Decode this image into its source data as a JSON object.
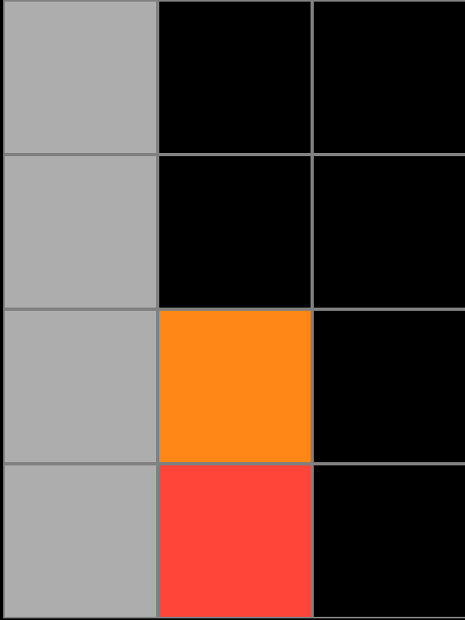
{
  "board": {
    "rows": 4,
    "cols": 3,
    "grid_line_color": "#808080",
    "cells": [
      [
        {
          "state": "filled",
          "color": "#ADADAD"
        },
        {
          "state": "empty",
          "color": "#000000"
        },
        {
          "state": "empty",
          "color": "#000000"
        }
      ],
      [
        {
          "state": "filled",
          "color": "#ADADAD"
        },
        {
          "state": "empty",
          "color": "#000000"
        },
        {
          "state": "empty",
          "color": "#000000"
        }
      ],
      [
        {
          "state": "filled",
          "color": "#ADADAD"
        },
        {
          "state": "filled",
          "color": "#FE8717"
        },
        {
          "state": "empty",
          "color": "#000000"
        }
      ],
      [
        {
          "state": "filled",
          "color": "#ADADAD"
        },
        {
          "state": "filled",
          "color": "#FF443A"
        },
        {
          "state": "empty",
          "color": "#000000"
        }
      ]
    ]
  }
}
